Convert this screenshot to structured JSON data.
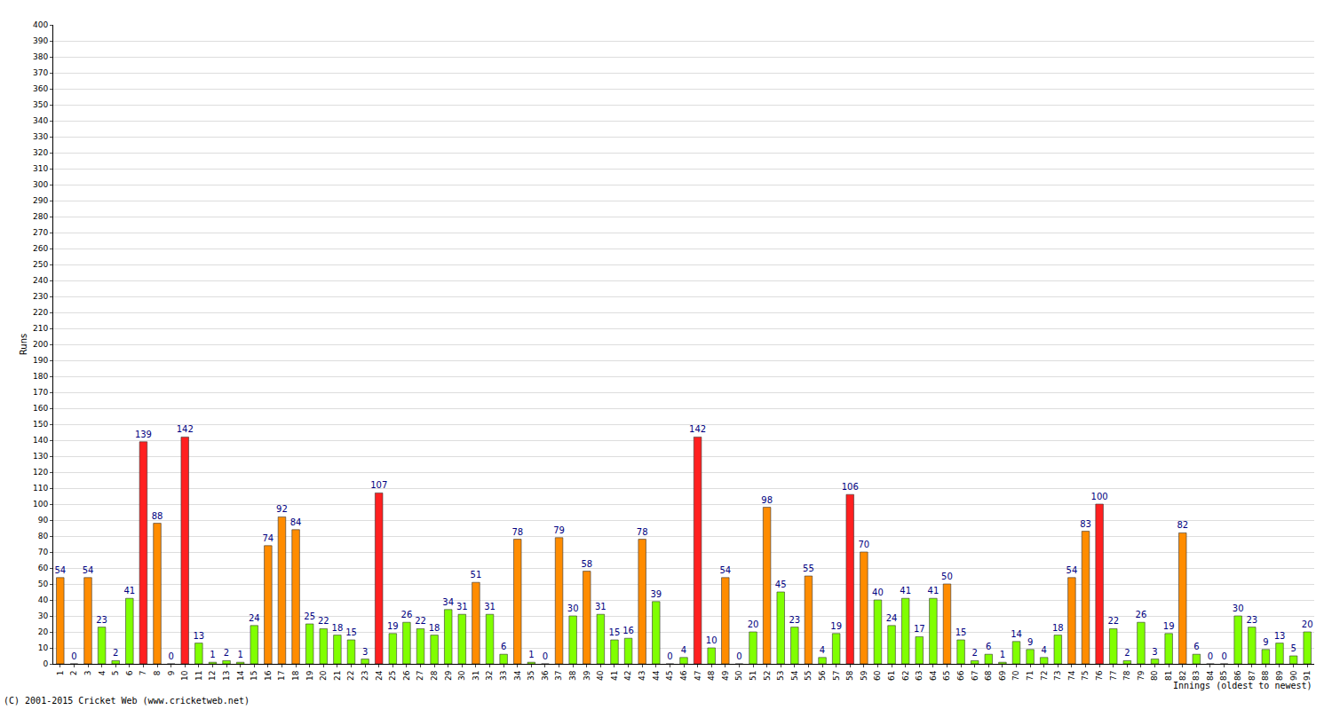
{
  "chart_data": {
    "type": "bar",
    "x_label": "Innings (oldest to newest)",
    "y_label": "Runs",
    "annotations": [
      {
        "text": "(C) 2001-2015 Cricket Web (www.cricketweb.net)"
      }
    ],
    "categories": [
      "1",
      "2",
      "3",
      "4",
      "5",
      "6",
      "7",
      "8",
      "9",
      "10",
      "11",
      "12",
      "13",
      "14",
      "15",
      "16",
      "17",
      "18",
      "19",
      "20",
      "21",
      "22",
      "23",
      "24",
      "25",
      "26",
      "27",
      "28",
      "29",
      "30",
      "31",
      "32",
      "33",
      "34",
      "35",
      "36",
      "37",
      "38",
      "39",
      "40",
      "41",
      "42",
      "43",
      "44",
      "45",
      "46",
      "47",
      "48",
      "49",
      "50",
      "51",
      "52",
      "53",
      "54",
      "55",
      "56",
      "57",
      "58",
      "59",
      "60",
      "61",
      "62",
      "63",
      "64",
      "65",
      "66",
      "67",
      "68",
      "69",
      "70",
      "71",
      "72",
      "73",
      "74",
      "75",
      "76",
      "77",
      "78",
      "79",
      "80",
      "81",
      "82",
      "83",
      "84",
      "85",
      "86",
      "87",
      "88",
      "89",
      "90",
      "91"
    ],
    "values": [
      54,
      0,
      54,
      23,
      2,
      41,
      139,
      88,
      0,
      142,
      13,
      1,
      2,
      1,
      24,
      74,
      92,
      84,
      25,
      22,
      18,
      15,
      3,
      107,
      19,
      26,
      22,
      18,
      34,
      31,
      51,
      31,
      6,
      78,
      1,
      0,
      79,
      30,
      58,
      31,
      15,
      16,
      78,
      39,
      0,
      4,
      142,
      10,
      54,
      0,
      20,
      98,
      45,
      23,
      55,
      4,
      19,
      106,
      70,
      40,
      24,
      41,
      17,
      41,
      50,
      15,
      2,
      6,
      1,
      14,
      9,
      4,
      18,
      54,
      83,
      100,
      22,
      2,
      26,
      3,
      19,
      82,
      6,
      0,
      0,
      30,
      23,
      9,
      13,
      5,
      20
    ],
    "colors": [
      "#ff8c00",
      "#80ff00",
      "#ff8c00",
      "#80ff00",
      "#80ff00",
      "#80ff00",
      "#ff2020",
      "#ff8c00",
      "#80ff00",
      "#ff2020",
      "#80ff00",
      "#80ff00",
      "#80ff00",
      "#80ff00",
      "#80ff00",
      "#ff8c00",
      "#ff8c00",
      "#ff8c00",
      "#80ff00",
      "#80ff00",
      "#80ff00",
      "#80ff00",
      "#80ff00",
      "#ff2020",
      "#80ff00",
      "#80ff00",
      "#80ff00",
      "#80ff00",
      "#80ff00",
      "#80ff00",
      "#ff8c00",
      "#80ff00",
      "#80ff00",
      "#ff8c00",
      "#80ff00",
      "#80ff00",
      "#ff8c00",
      "#80ff00",
      "#ff8c00",
      "#80ff00",
      "#80ff00",
      "#80ff00",
      "#ff8c00",
      "#80ff00",
      "#80ff00",
      "#80ff00",
      "#ff2020",
      "#80ff00",
      "#ff8c00",
      "#80ff00",
      "#80ff00",
      "#ff8c00",
      "#80ff00",
      "#80ff00",
      "#ff8c00",
      "#80ff00",
      "#80ff00",
      "#ff2020",
      "#ff8c00",
      "#80ff00",
      "#80ff00",
      "#80ff00",
      "#80ff00",
      "#80ff00",
      "#ff8c00",
      "#80ff00",
      "#80ff00",
      "#80ff00",
      "#80ff00",
      "#80ff00",
      "#80ff00",
      "#80ff00",
      "#80ff00",
      "#ff8c00",
      "#ff8c00",
      "#ff2020",
      "#80ff00",
      "#80ff00",
      "#80ff00",
      "#80ff00",
      "#80ff00",
      "#ff8c00",
      "#80ff00",
      "#80ff00",
      "#80ff00",
      "#80ff00",
      "#80ff00",
      "#80ff00",
      "#80ff00",
      "#80ff00",
      "#80ff00"
    ],
    "ylim": [
      0,
      400
    ],
    "yticks": [
      0,
      10,
      20,
      30,
      40,
      50,
      60,
      70,
      80,
      90,
      100,
      110,
      120,
      130,
      140,
      150,
      160,
      170,
      180,
      190,
      200,
      210,
      220,
      230,
      240,
      250,
      260,
      270,
      280,
      290,
      300,
      310,
      320,
      330,
      340,
      350,
      360,
      370,
      380,
      390,
      400
    ],
    "grid": true,
    "data_labels": true
  }
}
